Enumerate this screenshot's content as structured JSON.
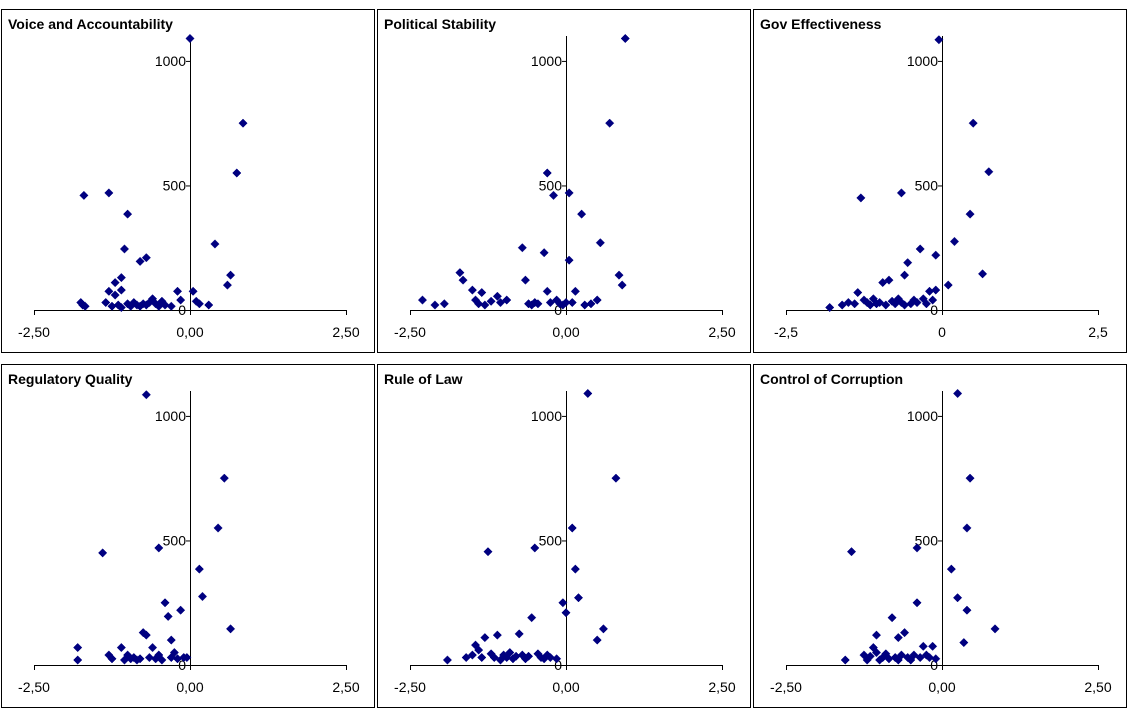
{
  "chart_data": [
    {
      "type": "scatter",
      "title": "Voice and Accountability",
      "xlim": [
        -2.5,
        2.5
      ],
      "ylim": [
        0,
        1100
      ],
      "x_ticks": [
        "-2,50",
        "0,00",
        "2,50"
      ],
      "y_ticks": [
        "500",
        "1000"
      ],
      "y_zero_label": "0",
      "marker_color": "#000080",
      "points": [
        [
          -1.7,
          460
        ],
        [
          -1.75,
          30
        ],
        [
          -1.72,
          20
        ],
        [
          -1.68,
          15
        ],
        [
          -1.3,
          470
        ],
        [
          -1.2,
          110
        ],
        [
          -1.1,
          130
        ],
        [
          -1.0,
          385
        ],
        [
          -1.05,
          245
        ],
        [
          -0.8,
          195
        ],
        [
          -0.7,
          210
        ],
        [
          -1.35,
          30
        ],
        [
          -1.3,
          75
        ],
        [
          -1.2,
          60
        ],
        [
          -1.15,
          20
        ],
        [
          -1.1,
          80
        ],
        [
          -1.0,
          25
        ],
        [
          -0.95,
          15
        ],
        [
          -0.9,
          30
        ],
        [
          -0.85,
          20
        ],
        [
          -0.8,
          15
        ],
        [
          -0.75,
          25
        ],
        [
          -0.7,
          20
        ],
        [
          -0.65,
          30
        ],
        [
          -0.6,
          45
        ],
        [
          -0.55,
          25
        ],
        [
          -0.5,
          15
        ],
        [
          -0.45,
          35
        ],
        [
          -0.4,
          20
        ],
        [
          -0.3,
          15
        ],
        [
          -1.25,
          15
        ],
        [
          -1.1,
          10
        ],
        [
          0.0,
          1090
        ],
        [
          -0.2,
          75
        ],
        [
          -0.15,
          40
        ],
        [
          0.05,
          75
        ],
        [
          0.1,
          35
        ],
        [
          0.15,
          25
        ],
        [
          0.3,
          20
        ],
        [
          0.4,
          265
        ],
        [
          0.6,
          100
        ],
        [
          0.65,
          140
        ],
        [
          0.75,
          550
        ],
        [
          0.85,
          750
        ]
      ]
    },
    {
      "type": "scatter",
      "title": "Political Stability",
      "xlim": [
        -2.5,
        2.5
      ],
      "ylim": [
        0,
        1100
      ],
      "x_ticks": [
        "-2,50",
        "0,00",
        "2,50"
      ],
      "y_ticks": [
        "500",
        "1000"
      ],
      "y_zero_label": "0",
      "marker_color": "#000080",
      "points": [
        [
          -2.3,
          40
        ],
        [
          -2.1,
          20
        ],
        [
          -1.95,
          25
        ],
        [
          -1.7,
          150
        ],
        [
          -1.65,
          120
        ],
        [
          -1.5,
          80
        ],
        [
          -1.45,
          40
        ],
        [
          -1.4,
          25
        ],
        [
          -1.35,
          70
        ],
        [
          -1.3,
          20
        ],
        [
          -1.2,
          35
        ],
        [
          -1.1,
          55
        ],
        [
          -1.05,
          30
        ],
        [
          -0.95,
          40
        ],
        [
          -0.7,
          250
        ],
        [
          -0.65,
          120
        ],
        [
          -0.6,
          25
        ],
        [
          -0.55,
          20
        ],
        [
          -0.5,
          30
        ],
        [
          -0.45,
          25
        ],
        [
          -0.35,
          230
        ],
        [
          -0.3,
          75
        ],
        [
          -0.3,
          550
        ],
        [
          -0.25,
          30
        ],
        [
          -0.2,
          460
        ],
        [
          -0.15,
          40
        ],
        [
          -0.1,
          25
        ],
        [
          -0.05,
          20
        ],
        [
          0.0,
          30
        ],
        [
          0.05,
          470
        ],
        [
          0.05,
          200
        ],
        [
          0.1,
          30
        ],
        [
          0.15,
          75
        ],
        [
          0.25,
          385
        ],
        [
          0.3,
          20
        ],
        [
          0.4,
          25
        ],
        [
          0.5,
          40
        ],
        [
          0.55,
          270
        ],
        [
          0.7,
          750
        ],
        [
          0.85,
          140
        ],
        [
          0.9,
          100
        ],
        [
          0.95,
          1090
        ]
      ]
    },
    {
      "type": "scatter",
      "title": "Gov Effectiveness",
      "xlim": [
        -2.5,
        2.5
      ],
      "ylim": [
        0,
        1100
      ],
      "x_ticks": [
        "-2,5",
        "0",
        "2,5"
      ],
      "y_ticks": [
        "500",
        "1000"
      ],
      "y_zero_label": "0",
      "marker_color": "#000080",
      "points": [
        [
          -1.8,
          10
        ],
        [
          -1.6,
          20
        ],
        [
          -1.5,
          30
        ],
        [
          -1.4,
          25
        ],
        [
          -1.35,
          70
        ],
        [
          -1.3,
          450
        ],
        [
          -1.25,
          40
        ],
        [
          -1.2,
          30
        ],
        [
          -1.15,
          20
        ],
        [
          -1.1,
          45
        ],
        [
          -1.05,
          25
        ],
        [
          -1.0,
          30
        ],
        [
          -0.95,
          110
        ],
        [
          -0.9,
          20
        ],
        [
          -0.85,
          120
        ],
        [
          -0.8,
          35
        ],
        [
          -0.75,
          25
        ],
        [
          -0.7,
          45
        ],
        [
          -0.65,
          470
        ],
        [
          -0.65,
          30
        ],
        [
          -0.6,
          140
        ],
        [
          -0.6,
          20
        ],
        [
          -0.55,
          190
        ],
        [
          -0.5,
          25
        ],
        [
          -0.45,
          40
        ],
        [
          -0.4,
          30
        ],
        [
          -0.35,
          245
        ],
        [
          -0.3,
          45
        ],
        [
          -0.25,
          25
        ],
        [
          -0.2,
          75
        ],
        [
          -0.15,
          40
        ],
        [
          -0.1,
          80
        ],
        [
          -0.1,
          220
        ],
        [
          -0.05,
          1085
        ],
        [
          0.1,
          100
        ],
        [
          0.2,
          275
        ],
        [
          0.45,
          385
        ],
        [
          0.5,
          750
        ],
        [
          0.65,
          145
        ],
        [
          0.75,
          555
        ]
      ]
    },
    {
      "type": "scatter",
      "title": "Regulatory Quality",
      "xlim": [
        -2.5,
        2.5
      ],
      "ylim": [
        0,
        1100
      ],
      "x_ticks": [
        "-2,50",
        "0,00",
        "2,50"
      ],
      "y_ticks": [
        "500",
        "1000"
      ],
      "y_zero_label": "0",
      "marker_color": "#000080",
      "points": [
        [
          -1.8,
          70
        ],
        [
          -1.8,
          20
        ],
        [
          -1.4,
          450
        ],
        [
          -1.3,
          40
        ],
        [
          -1.25,
          25
        ],
        [
          -1.1,
          70
        ],
        [
          -1.05,
          20
        ],
        [
          -1.0,
          40
        ],
        [
          -0.95,
          25
        ],
        [
          -0.9,
          30
        ],
        [
          -0.85,
          20
        ],
        [
          -0.8,
          25
        ],
        [
          -0.75,
          130
        ],
        [
          -0.7,
          120
        ],
        [
          -0.7,
          1085
        ],
        [
          -0.65,
          30
        ],
        [
          -0.6,
          70
        ],
        [
          -0.55,
          25
        ],
        [
          -0.5,
          470
        ],
        [
          -0.5,
          40
        ],
        [
          -0.45,
          20
        ],
        [
          -0.4,
          250
        ],
        [
          -0.35,
          195
        ],
        [
          -0.3,
          100
        ],
        [
          -0.3,
          30
        ],
        [
          -0.25,
          50
        ],
        [
          -0.2,
          25
        ],
        [
          -0.15,
          220
        ],
        [
          -0.1,
          30
        ],
        [
          -0.05,
          30
        ],
        [
          0.15,
          385
        ],
        [
          0.2,
          275
        ],
        [
          0.45,
          550
        ],
        [
          0.55,
          750
        ],
        [
          0.65,
          145
        ]
      ]
    },
    {
      "type": "scatter",
      "title": "Rule of Law",
      "xlim": [
        -2.5,
        2.5
      ],
      "ylim": [
        0,
        1100
      ],
      "x_ticks": [
        "-2,50",
        "0,00",
        "2,50"
      ],
      "y_ticks": [
        "500",
        "1000"
      ],
      "y_zero_label": "0",
      "marker_color": "#000080",
      "points": [
        [
          -1.9,
          20
        ],
        [
          -1.6,
          30
        ],
        [
          -1.5,
          40
        ],
        [
          -1.45,
          80
        ],
        [
          -1.4,
          60
        ],
        [
          -1.35,
          30
        ],
        [
          -1.3,
          110
        ],
        [
          -1.25,
          455
        ],
        [
          -1.2,
          45
        ],
        [
          -1.15,
          30
        ],
        [
          -1.1,
          120
        ],
        [
          -1.05,
          20
        ],
        [
          -1.0,
          40
        ],
        [
          -0.95,
          30
        ],
        [
          -0.9,
          50
        ],
        [
          -0.85,
          25
        ],
        [
          -0.8,
          35
        ],
        [
          -0.75,
          125
        ],
        [
          -0.7,
          40
        ],
        [
          -0.65,
          25
        ],
        [
          -0.6,
          35
        ],
        [
          -0.55,
          190
        ],
        [
          -0.5,
          470
        ],
        [
          -0.45,
          45
        ],
        [
          -0.4,
          30
        ],
        [
          -0.35,
          25
        ],
        [
          -0.3,
          40
        ],
        [
          -0.25,
          30
        ],
        [
          -0.15,
          25
        ],
        [
          -0.05,
          250
        ],
        [
          0.0,
          210
        ],
        [
          0.1,
          550
        ],
        [
          0.15,
          385
        ],
        [
          0.2,
          270
        ],
        [
          0.35,
          1090
        ],
        [
          0.5,
          100
        ],
        [
          0.6,
          145
        ],
        [
          0.8,
          750
        ]
      ]
    },
    {
      "type": "scatter",
      "title": "Control of Corruption",
      "xlim": [
        -2.5,
        2.5
      ],
      "ylim": [
        0,
        1100
      ],
      "x_ticks": [
        "-2,50",
        "0,00",
        "2,50"
      ],
      "y_ticks": [
        "500",
        "1000"
      ],
      "y_zero_label": "0",
      "marker_color": "#000080",
      "points": [
        [
          -1.55,
          20
        ],
        [
          -1.45,
          455
        ],
        [
          -1.25,
          40
        ],
        [
          -1.2,
          20
        ],
        [
          -1.15,
          35
        ],
        [
          -1.1,
          70
        ],
        [
          -1.05,
          120
        ],
        [
          -1.05,
          50
        ],
        [
          -1.0,
          20
        ],
        [
          -0.95,
          30
        ],
        [
          -0.9,
          45
        ],
        [
          -0.85,
          25
        ],
        [
          -0.8,
          190
        ],
        [
          -0.75,
          30
        ],
        [
          -0.7,
          20
        ],
        [
          -0.7,
          110
        ],
        [
          -0.65,
          40
        ],
        [
          -0.6,
          130
        ],
        [
          -0.55,
          30
        ],
        [
          -0.5,
          20
        ],
        [
          -0.45,
          40
        ],
        [
          -0.4,
          250
        ],
        [
          -0.4,
          470
        ],
        [
          -0.35,
          30
        ],
        [
          -0.3,
          75
        ],
        [
          -0.25,
          40
        ],
        [
          -0.2,
          30
        ],
        [
          -0.15,
          75
        ],
        [
          -0.1,
          25
        ],
        [
          0.15,
          385
        ],
        [
          0.25,
          270
        ],
        [
          0.25,
          1090
        ],
        [
          0.35,
          90
        ],
        [
          0.4,
          220
        ],
        [
          0.4,
          550
        ],
        [
          0.45,
          750
        ],
        [
          0.85,
          145
        ]
      ]
    }
  ]
}
